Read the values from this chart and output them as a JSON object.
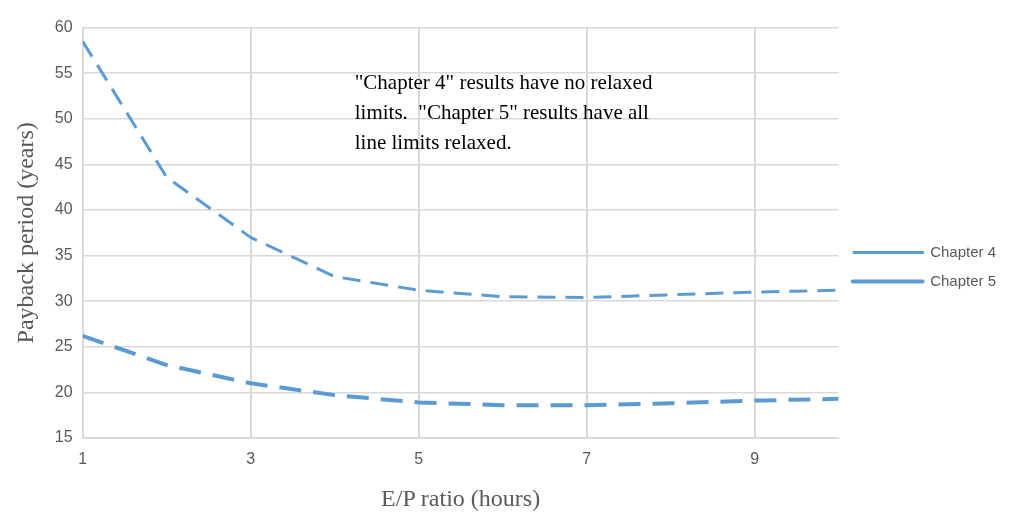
{
  "chart_data": {
    "type": "line",
    "xlabel": "E/P ratio (hours)",
    "ylabel": "Payback period (years)",
    "x": [
      1,
      2,
      3,
      4,
      5,
      6,
      7,
      8,
      9,
      10
    ],
    "series": [
      {
        "name": "Chapter 4",
        "color": "#5b9bd5",
        "values": [
          58.5,
          43.6,
          37,
          32.7,
          31.2,
          30.5,
          30.4,
          30.7,
          31,
          31.2
        ]
      },
      {
        "name": "Chapter 5",
        "color": "#5b9bd5",
        "values": [
          26.2,
          23,
          21,
          19.7,
          18.9,
          18.6,
          18.6,
          18.8,
          19.1,
          19.3
        ]
      }
    ],
    "xlim": [
      1,
      10
    ],
    "xticks": [
      1,
      3,
      5,
      7,
      9
    ],
    "ylim": [
      15,
      60
    ],
    "yticks": [
      15,
      20,
      25,
      30,
      35,
      40,
      45,
      50,
      55,
      60
    ],
    "grid": true,
    "legend": "right",
    "marker": "none",
    "line_style": "dashed",
    "annotations": [
      "\"Chapter 4\" results have no relaxed limits.  \"Chapter 5\" results have all line limits relaxed."
    ]
  }
}
